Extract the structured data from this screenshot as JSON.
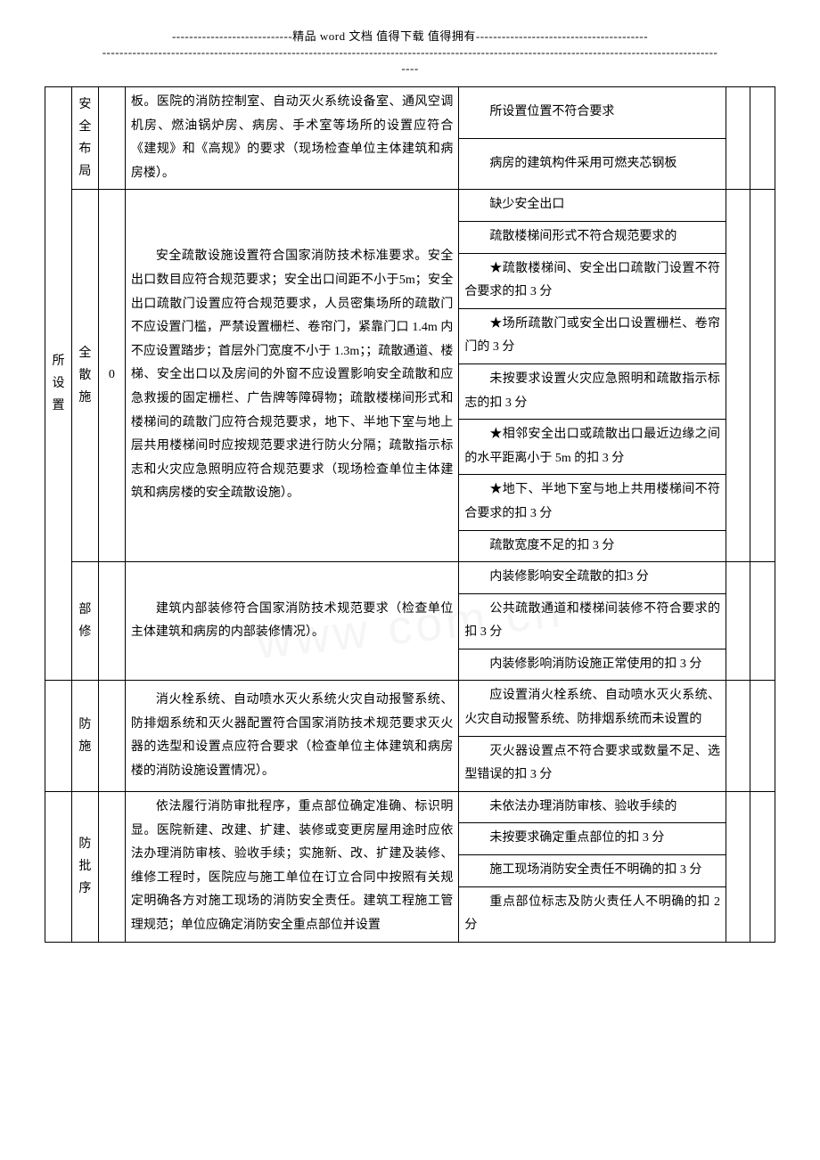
{
  "header": {
    "line1_left": "----------------------------",
    "line1_mid": "精品 word 文档  值得下载  值得拥有",
    "line1_right": "----------------------------------------",
    "line2": "-----------------------------------------------------------------------------------------------------------------------------------------------",
    "line3": "----"
  },
  "watermark": "www                         com cn",
  "table": {
    "col0_label": "所设置",
    "rows": [
      {
        "c1a": "安全",
        "c1b": "布局",
        "desc": "板。医院的消防控制室、自动灭火系统设备室、通风空调机房、燃油锅炉房、病房、手术室等场所的设置应符合《建规》和《高规》的要求（现场检查单位主体建筑和病房楼）。",
        "crits": [
          "所设置位置不符合要求",
          "病房的建筑构件采用可燃夹芯钢板"
        ]
      },
      {
        "c1": "全　散　施",
        "score": "0",
        "desc": "安全疏散设施设置符合国家消防技术标准要求。安全出口数目应符合规范要求；安全出口间距不小于5m；安全出口疏散门设置应符合规范要求，人员密集场所的疏散门不应设置门槛，严禁设置栅栏、卷帘门，紧靠门口 1.4m 内不应设置踏步；首层外门宽度不小于 1.3m；；疏散通道、楼梯、安全出口以及房间的外窗不应设置影响安全疏散和应急救援的固定栅栏、广告牌等障碍物；疏散楼梯间形式和楼梯间的疏散门应符合规范要求，地下、半地下室与地上层共用楼梯间时应按规范要求进行防火分隔；疏散指示标志和火灾应急照明应符合规范要求（现场检查单位主体建筑和病房楼的安全疏散设施）。",
        "crits": [
          "缺少安全出口",
          "疏散楼梯间形式不符合规范要求的",
          "★疏散楼梯间、安全出口疏散门设置不符合要求的扣 3 分",
          "★场所疏散门或安全出口设置栅栏、卷帘门的 3 分",
          "未按要求设置火灾应急照明和疏散指示标志的扣 3 分",
          "★相邻安全出口或疏散出口最近边缘之间的水平距离小于 5m 的扣 3 分",
          "★地下、半地下室与地上共用楼梯间不符合要求的扣 3 分",
          "疏散宽度不足的扣 3 分"
        ]
      },
      {
        "c1": "部　　修",
        "desc": "建筑内部装修符合国家消防技术规范要求（检查单位主体建筑和病房的内部装修情况）。",
        "crits": [
          "内装修影响安全疏散的扣3 分",
          "公共疏散通道和楼梯间装修不符合要求的扣 3 分",
          "内装修影响消防设施正常使用的扣 3 分"
        ]
      },
      {
        "c1": "防　　施",
        "desc": "消火栓系统、自动喷水灭火系统火灾自动报警系统、防排烟系统和灭火器配置符合国家消防技术规范要求灭火器的选型和设置点应符合要求（检查单位主体建筑和病房楼的消防设施设置情况）。",
        "crits": [
          "应设置消火栓系统、自动喷水灭火系统、火灾自动报警系统、防排烟系统而未设置的",
          "灭火器设置点不符合要求或数量不足、选型错误的扣 3 分"
        ]
      },
      {
        "c1": "防　批　序",
        "desc": "依法履行消防审批程序，重点部位确定准确、标识明显。医院新建、改建、扩建、装修或变更房屋用途时应依法办理消防审核、验收手续；实施新、改、扩建及装修、维修工程时，医院应与施工单位在订立合同中按照有关规定明确各方对施工现场的消防安全责任。建筑工程施工管理规范；单位应确定消防安全重点部位并设置",
        "crits": [
          "未依法办理消防审核、验收手续的",
          "未按要求确定重点部位的扣 3 分",
          "施工现场消防安全责任不明确的扣 3 分",
          "重点部位标志及防火责任人不明确的扣 2 分"
        ]
      }
    ]
  }
}
